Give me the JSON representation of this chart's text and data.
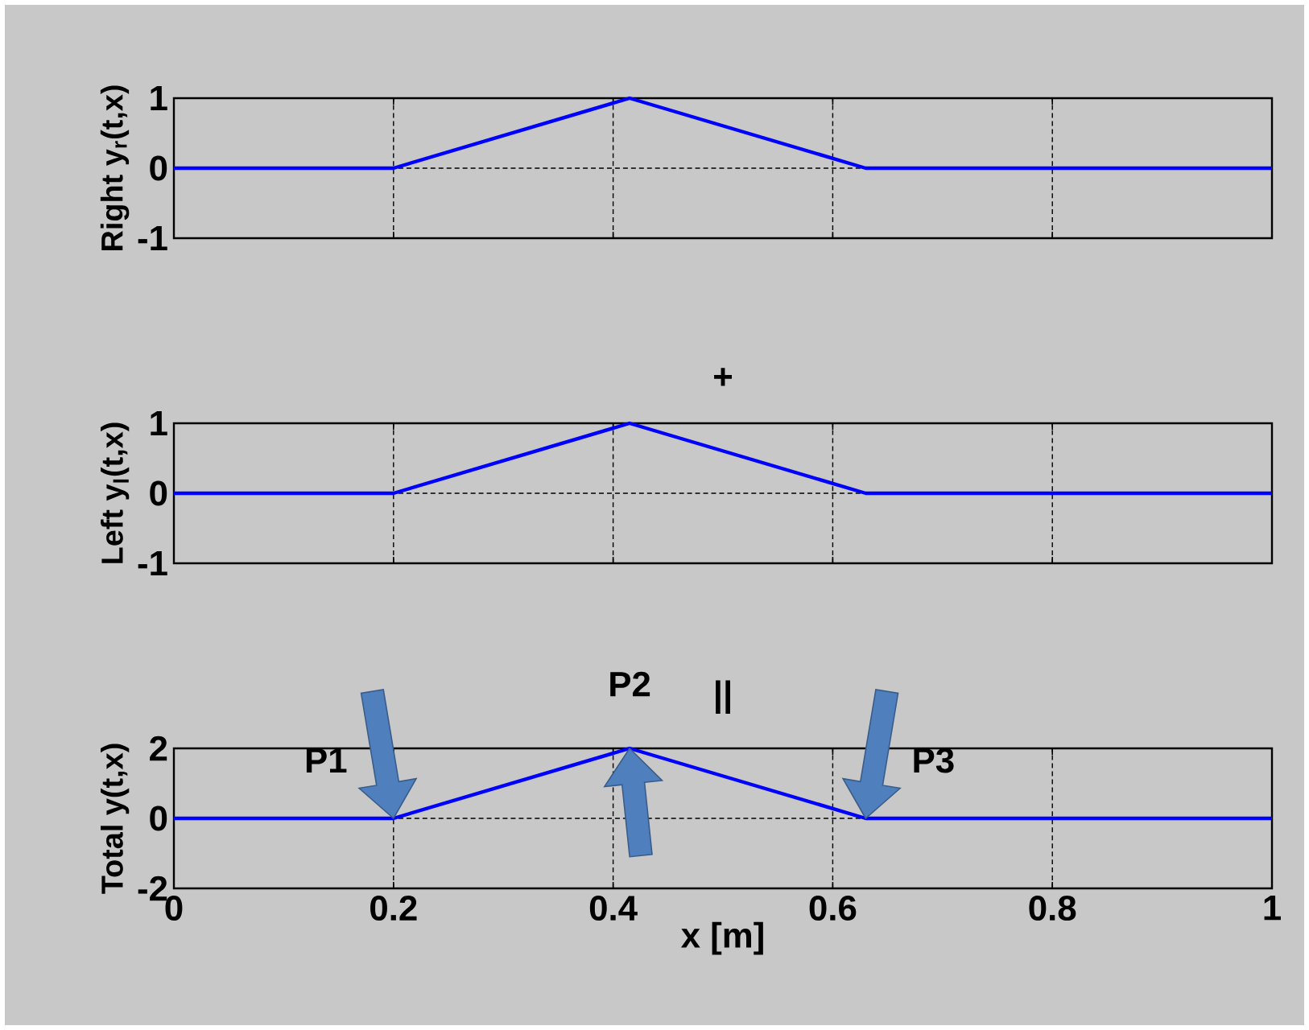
{
  "chart_data": [
    {
      "type": "line",
      "ylabel": "Right y$_{r}$(t,x)",
      "x": [
        0,
        0.2,
        0.415,
        0.63,
        1
      ],
      "values": [
        0,
        0,
        1,
        0,
        0
      ],
      "color": "#0000ff",
      "xlim": [
        0,
        1
      ],
      "xticks": [
        0,
        0.2,
        0.4,
        0.6,
        0.8,
        1
      ],
      "ylim": [
        -1,
        1
      ],
      "yticks": [
        -1,
        0,
        1
      ],
      "grid": true,
      "tick_labels": "y"
    },
    {
      "type": "line",
      "title": "+",
      "ylabel": "Left y$_{l}$(t,x)",
      "x": [
        0,
        0.2,
        0.415,
        0.63,
        1
      ],
      "values": [
        0,
        0,
        1,
        0,
        0
      ],
      "color": "#0000ff",
      "xlim": [
        0,
        1
      ],
      "xticks": [
        0,
        0.2,
        0.4,
        0.6,
        0.8,
        1
      ],
      "ylim": [
        -1,
        1
      ],
      "yticks": [
        -1,
        0,
        1
      ],
      "grid": true,
      "tick_labels": "y"
    },
    {
      "type": "line",
      "title": "||",
      "ylabel": "Total y(t,x)",
      "xlabel": "x [m]",
      "x": [
        0,
        0.2,
        0.415,
        0.63,
        1
      ],
      "values": [
        0,
        0,
        2,
        0,
        0
      ],
      "color": "#0000ff",
      "xlim": [
        0,
        1
      ],
      "xticks": [
        0,
        0.2,
        0.4,
        0.6,
        0.8,
        1
      ],
      "ylim": [
        -2,
        2
      ],
      "yticks": [
        -2,
        0,
        2
      ],
      "grid": true,
      "annotations": [
        {
          "text": "P1",
          "x": 0.2,
          "y": 0
        },
        {
          "text": "P2",
          "x": 0.415,
          "y": 2
        },
        {
          "text": "P3",
          "x": 0.63,
          "y": 0
        }
      ]
    }
  ]
}
